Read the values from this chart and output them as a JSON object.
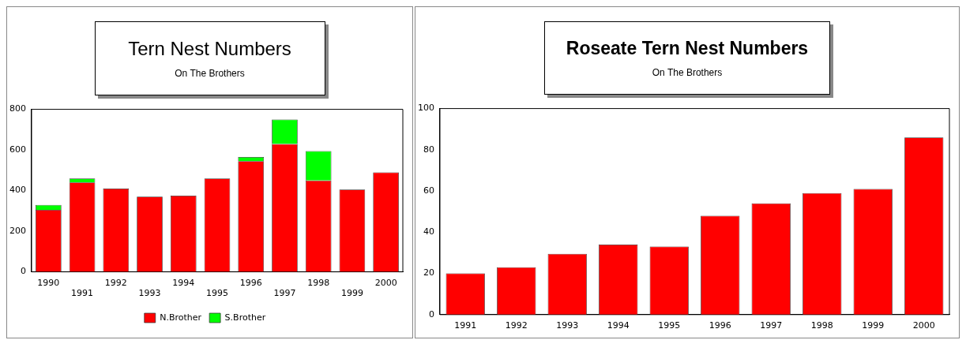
{
  "chart_data": [
    {
      "type": "bar",
      "title": "Tern Nest Numbers",
      "subtitle": "On The Brothers",
      "categories": [
        "1990",
        "1991",
        "1992",
        "1993",
        "1994",
        "1995",
        "1996",
        "1997",
        "1998",
        "1999",
        "2000"
      ],
      "stacked": true,
      "series": [
        {
          "name": "N.Brother",
          "color": "#ff0000",
          "values": [
            305,
            440,
            410,
            370,
            375,
            460,
            545,
            630,
            450,
            405,
            490
          ]
        },
        {
          "name": "S.Brother",
          "color": "#00ff00",
          "values": [
            25,
            20,
            null,
            null,
            null,
            null,
            20,
            120,
            145,
            null,
            null
          ]
        }
      ],
      "ylim": [
        0,
        800
      ],
      "yticks": [
        0,
        200,
        400,
        600,
        800
      ],
      "grid": false,
      "legend": "bottom"
    },
    {
      "type": "bar",
      "title": "Roseate Tern Nest Numbers",
      "subtitle": "On The Brothers",
      "categories": [
        "1991",
        "1992",
        "1993",
        "1994",
        "1995",
        "1996",
        "1997",
        "1998",
        "1999",
        "2000"
      ],
      "values": [
        20,
        23,
        29.5,
        34,
        33,
        48,
        54,
        59,
        61,
        86
      ],
      "color": "#ff0000",
      "ylim": [
        0,
        100
      ],
      "yticks": [
        0,
        20,
        40,
        60,
        80,
        100
      ],
      "grid": false,
      "legend": false
    }
  ]
}
